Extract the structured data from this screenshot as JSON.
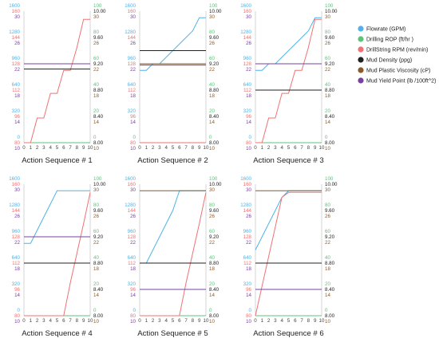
{
  "colors": {
    "flowrate": "#4fb3e8",
    "rop": "#5cc47a",
    "rpm": "#f07272",
    "density": "#222222",
    "pv": "#8b5a2b",
    "yp": "#7b3fa0",
    "axis": "#cccccc"
  },
  "legend": [
    {
      "label": "Flowrate (GPM)",
      "color": "#4fb3e8"
    },
    {
      "label": "Drilling ROP (ft/hr )",
      "color": "#5cc47a"
    },
    {
      "label": "DrillString RPM (rev/min)",
      "color": "#f07272"
    },
    {
      "label": "Mud Density (ppg)",
      "color": "#222222"
    },
    {
      "label": "Mud Plastic Viscosity (cP)",
      "color": "#8b5a2b"
    },
    {
      "label": "Mud Yield Point (lb /100ft^2)",
      "color": "#7b3fa0"
    }
  ],
  "left_axis": {
    "flowrate_ticks": [
      "1600",
      "1280",
      "960",
      "640",
      "320",
      "0"
    ],
    "rpm_ticks": [
      "160",
      "144",
      "128",
      "112",
      "96",
      "80"
    ],
    "yp_ticks": [
      "30",
      "26",
      "22",
      "18",
      "14",
      "10"
    ]
  },
  "right_axis": {
    "rop_ticks": [
      "100",
      "80",
      "60",
      "40",
      "20",
      "0"
    ],
    "density_ticks": [
      "10.00",
      "9.60",
      "9.20",
      "8.80",
      "8.40",
      "8.00"
    ],
    "pv_ticks": [
      "30",
      "26",
      "22",
      "18",
      "14",
      "10"
    ]
  },
  "chart_data": [
    {
      "type": "line",
      "title": "Action Sequence # 1",
      "x": [
        0,
        1,
        2,
        3,
        4,
        5,
        6,
        7,
        8,
        9,
        10
      ],
      "series": [
        {
          "name": "Flowrate (GPM)",
          "values": [
            960,
            960,
            960,
            960,
            960,
            960,
            960,
            960,
            960,
            960,
            960
          ]
        },
        {
          "name": "Drilling ROP (ft/hr )",
          "values": [
            0,
            0,
            0,
            0,
            0,
            0,
            0,
            0,
            0,
            0,
            0
          ]
        },
        {
          "name": "DrillString RPM (rev/min)",
          "values": [
            80,
            80,
            95,
            95,
            110,
            110,
            124,
            124,
            138,
            155,
            155
          ]
        },
        {
          "name": "Mud Density (ppg)",
          "values": [
            9.12,
            9.12,
            9.12,
            9.12,
            9.12,
            9.12,
            9.12,
            9.12,
            9.12,
            9.12,
            9.12
          ]
        },
        {
          "name": "Mud Plastic Viscosity (cP)",
          "values": [
            22,
            22,
            22,
            22,
            22,
            22,
            22,
            22,
            22,
            22,
            22
          ]
        },
        {
          "name": "Mud Yield Point (lb /100ft^2)",
          "values": [
            22,
            22,
            22,
            22,
            22,
            22,
            22,
            22,
            22,
            22,
            22
          ]
        }
      ]
    },
    {
      "type": "line",
      "title": "Action Sequence # 2",
      "x": [
        0,
        1,
        2,
        3,
        4,
        5,
        6,
        7,
        8,
        9,
        10
      ],
      "series": [
        {
          "name": "Flowrate (GPM)",
          "values": [
            880,
            880,
            960,
            960,
            1040,
            1120,
            1200,
            1280,
            1360,
            1520,
            1520
          ]
        },
        {
          "name": "Drilling ROP (ft/hr )",
          "values": [
            0,
            0,
            0,
            0,
            0,
            0,
            0,
            0,
            0,
            0,
            0
          ]
        },
        {
          "name": "DrillString RPM (rev/min)",
          "values": [
            80,
            80,
            80,
            80,
            80,
            80,
            80,
            80,
            80,
            80,
            80
          ]
        },
        {
          "name": "Mud Density (ppg)",
          "values": [
            9.4,
            9.4,
            9.4,
            9.4,
            9.4,
            9.4,
            9.4,
            9.4,
            9.4,
            9.4,
            9.4
          ]
        },
        {
          "name": "Mud Plastic Viscosity (cP)",
          "values": [
            22,
            22,
            22,
            22,
            22,
            22,
            22,
            22,
            22,
            22,
            22
          ]
        },
        {
          "name": "Mud Yield Point (lb /100ft^2)",
          "values": [
            21.8,
            21.8,
            21.8,
            21.8,
            21.8,
            21.8,
            21.8,
            21.8,
            21.8,
            21.8,
            21.8
          ]
        }
      ]
    },
    {
      "type": "line",
      "title": "Action Sequence # 3",
      "x": [
        0,
        1,
        2,
        3,
        4,
        5,
        6,
        7,
        8,
        9,
        10
      ],
      "series": [
        {
          "name": "Flowrate (GPM)",
          "values": [
            880,
            880,
            960,
            960,
            1040,
            1120,
            1200,
            1280,
            1360,
            1520,
            1520
          ]
        },
        {
          "name": "Drilling ROP (ft/hr )",
          "values": [
            0,
            0,
            0,
            0,
            0,
            0,
            0,
            0,
            0,
            0,
            0
          ]
        },
        {
          "name": "DrillString RPM (rev/min)",
          "values": [
            80,
            80,
            95,
            95,
            110,
            110,
            124,
            124,
            138,
            155,
            155
          ]
        },
        {
          "name": "Mud Density (ppg)",
          "values": [
            8.8,
            8.8,
            8.8,
            8.8,
            8.8,
            8.8,
            8.8,
            8.8,
            8.8,
            8.8,
            8.8
          ]
        },
        {
          "name": "Mud Plastic Viscosity (cP)",
          "values": [
            22,
            22,
            22,
            22,
            22,
            22,
            22,
            22,
            22,
            22,
            22
          ]
        },
        {
          "name": "Mud Yield Point (lb /100ft^2)",
          "values": [
            22,
            22,
            22,
            22,
            22,
            22,
            22,
            22,
            22,
            22,
            22
          ]
        }
      ]
    },
    {
      "type": "line",
      "title": "Action Sequence # 4",
      "x": [
        0,
        1,
        2,
        3,
        4,
        5,
        6,
        7,
        8,
        9,
        10
      ],
      "series": [
        {
          "name": "Flowrate (GPM)",
          "values": [
            880,
            880,
            1040,
            1200,
            1360,
            1520,
            1520,
            1520,
            1520,
            1520,
            1520
          ]
        },
        {
          "name": "Drilling ROP (ft/hr )",
          "values": [
            0,
            0,
            0,
            0,
            0,
            0,
            0,
            0,
            0,
            0,
            0
          ]
        },
        {
          "name": "DrillString RPM (rev/min)",
          "values": [
            80,
            80,
            80,
            80,
            80,
            80,
            80,
            100,
            118,
            136,
            155
          ]
        },
        {
          "name": "Mud Density (ppg)",
          "values": [
            8.8,
            8.8,
            8.8,
            8.8,
            8.8,
            8.8,
            8.8,
            8.8,
            8.8,
            8.8,
            8.8
          ]
        },
        {
          "name": "Mud Plastic Viscosity (cP)",
          "values": [
            22,
            22,
            22,
            22,
            22,
            22,
            22,
            22,
            22,
            22,
            22
          ]
        },
        {
          "name": "Mud Yield Point (lb /100ft^2)",
          "values": [
            22,
            22,
            22,
            22,
            22,
            22,
            22,
            22,
            22,
            22,
            22
          ]
        }
      ]
    },
    {
      "type": "line",
      "title": "Action Sequence # 5",
      "x": [
        0,
        1,
        2,
        3,
        4,
        5,
        6,
        7,
        8,
        9,
        10
      ],
      "series": [
        {
          "name": "Flowrate (GPM)",
          "values": [
            640,
            640,
            800,
            960,
            1120,
            1280,
            1520,
            1520,
            1520,
            1520,
            1520
          ]
        },
        {
          "name": "Drilling ROP (ft/hr )",
          "values": [
            0,
            0,
            0,
            0,
            0,
            0,
            0,
            0,
            0,
            0,
            0
          ]
        },
        {
          "name": "DrillString RPM (rev/min)",
          "values": [
            80,
            80,
            80,
            80,
            80,
            80,
            80,
            100,
            118,
            136,
            155
          ]
        },
        {
          "name": "Mud Density (ppg)",
          "values": [
            8.8,
            8.8,
            8.8,
            8.8,
            8.8,
            8.8,
            8.8,
            8.8,
            8.8,
            8.8,
            8.8
          ]
        },
        {
          "name": "Mud Plastic Viscosity (cP)",
          "values": [
            29,
            29,
            29,
            29,
            29,
            29,
            29,
            29,
            29,
            29,
            29
          ]
        },
        {
          "name": "Mud Yield Point (lb /100ft^2)",
          "values": [
            14,
            14,
            14,
            14,
            14,
            14,
            14,
            14,
            14,
            14,
            14
          ]
        }
      ]
    },
    {
      "type": "line",
      "title": "Action Sequence # 6",
      "x": [
        0,
        1,
        2,
        3,
        4,
        5,
        6,
        7,
        8,
        9,
        10
      ],
      "series": [
        {
          "name": "Flowrate (GPM)",
          "values": [
            800,
            960,
            1120,
            1280,
            1440,
            1520,
            1520,
            1520,
            1520,
            1520,
            1520
          ]
        },
        {
          "name": "Drilling ROP (ft/hr )",
          "values": [
            0,
            0,
            0,
            0,
            0,
            0,
            0,
            0,
            0,
            0,
            0
          ]
        },
        {
          "name": "DrillString RPM (rev/min)",
          "values": [
            80,
            98,
            116,
            134,
            152,
            155,
            155,
            155,
            155,
            155,
            155
          ]
        },
        {
          "name": "Mud Density (ppg)",
          "values": [
            8.8,
            8.8,
            8.8,
            8.8,
            8.8,
            8.8,
            8.8,
            8.8,
            8.8,
            8.8,
            8.8
          ]
        },
        {
          "name": "Mud Plastic Viscosity (cP)",
          "values": [
            29,
            29,
            29,
            29,
            29,
            29,
            29,
            29,
            29,
            29,
            29
          ]
        },
        {
          "name": "Mud Yield Point (lb /100ft^2)",
          "values": [
            14,
            14,
            14,
            14,
            14,
            14,
            14,
            14,
            14,
            14,
            14
          ]
        }
      ]
    }
  ]
}
